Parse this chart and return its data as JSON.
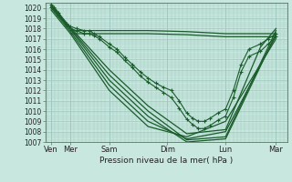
{
  "bg_color": "#c8e8df",
  "grid_color": "#9ec8bf",
  "line_color": "#1a5c2a",
  "x_labels": [
    "Ven",
    "Mer",
    "Sam",
    "Dim",
    "Lun",
    "Mar"
  ],
  "x_positions": [
    0,
    0.5,
    1.5,
    3.0,
    4.5,
    5.8
  ],
  "ylabel": "Pression niveau de la mer( hPa )",
  "ymin": 1007,
  "ymax": 1020.5,
  "yticks": [
    1007,
    1008,
    1009,
    1010,
    1011,
    1012,
    1013,
    1014,
    1015,
    1016,
    1017,
    1018,
    1019,
    1020
  ],
  "xmin": -0.15,
  "xmax": 6.1,
  "forecast_lines": [
    {
      "x": [
        0.0,
        0.08,
        0.2,
        0.4,
        0.5,
        0.65,
        0.85,
        1.0,
        1.1,
        1.25,
        1.5,
        1.7,
        1.9,
        2.1,
        2.3,
        2.5,
        2.7,
        2.9,
        3.1,
        3.3,
        3.5,
        3.65,
        3.8,
        3.95,
        4.1,
        4.3,
        4.5,
        4.7,
        4.9,
        5.1,
        5.4,
        5.6,
        5.8
      ],
      "y": [
        1020.3,
        1020.1,
        1019.5,
        1018.5,
        1018.2,
        1018.0,
        1017.8,
        1017.8,
        1017.5,
        1017.2,
        1016.5,
        1016.0,
        1015.2,
        1014.5,
        1013.8,
        1013.2,
        1012.7,
        1012.3,
        1012.0,
        1011.0,
        1009.8,
        1009.3,
        1009.0,
        1009.0,
        1009.3,
        1009.8,
        1010.2,
        1012.0,
        1014.5,
        1016.0,
        1016.5,
        1017.0,
        1017.5
      ],
      "marker": true,
      "dotted": true
    },
    {
      "x": [
        0.0,
        0.08,
        0.2,
        0.4,
        0.5,
        0.65,
        0.85,
        1.0,
        1.1,
        1.25,
        1.5,
        1.7,
        1.9,
        2.1,
        2.3,
        2.5,
        2.7,
        2.9,
        3.1,
        3.3,
        3.5,
        3.65,
        3.8,
        3.95,
        4.1,
        4.3,
        4.5,
        4.7,
        4.9,
        5.1,
        5.4,
        5.6,
        5.8
      ],
      "y": [
        1020.1,
        1019.9,
        1019.3,
        1018.3,
        1018.0,
        1017.8,
        1017.5,
        1017.5,
        1017.3,
        1017.0,
        1016.2,
        1015.7,
        1014.9,
        1014.2,
        1013.4,
        1012.8,
        1012.3,
        1011.8,
        1011.3,
        1010.3,
        1009.2,
        1008.7,
        1008.3,
        1008.3,
        1008.6,
        1009.1,
        1009.5,
        1011.3,
        1013.8,
        1015.3,
        1015.8,
        1016.5,
        1017.2
      ],
      "marker": true,
      "dotted": true
    },
    {
      "x": [
        0.0,
        0.5,
        1.5,
        2.5,
        3.5,
        4.5,
        5.8
      ],
      "y": [
        1020.2,
        1018.0,
        1013.5,
        1010.0,
        1007.2,
        1007.5,
        1017.8
      ],
      "marker": false,
      "dotted": false
    },
    {
      "x": [
        0.0,
        0.5,
        1.5,
        2.5,
        3.5,
        4.5,
        5.8
      ],
      "y": [
        1020.1,
        1017.9,
        1013.0,
        1009.5,
        1007.0,
        1007.3,
        1017.5
      ],
      "marker": false,
      "dotted": false
    },
    {
      "x": [
        0.0,
        0.5,
        1.5,
        2.5,
        3.5,
        4.5,
        5.8
      ],
      "y": [
        1020.0,
        1017.7,
        1012.5,
        1009.0,
        1007.3,
        1008.0,
        1017.3
      ],
      "marker": false,
      "dotted": false
    },
    {
      "x": [
        0.0,
        0.5,
        1.5,
        2.5,
        3.5,
        4.5,
        5.8
      ],
      "y": [
        1019.8,
        1017.5,
        1012.0,
        1008.5,
        1007.5,
        1009.0,
        1017.0
      ],
      "marker": false,
      "dotted": false
    },
    {
      "x": [
        0.5,
        1.5,
        2.5,
        3.5,
        4.5,
        5.8
      ],
      "y": [
        1017.8,
        1017.8,
        1017.8,
        1017.7,
        1017.5,
        1017.5
      ],
      "marker": false,
      "dotted": false
    },
    {
      "x": [
        0.5,
        1.5,
        2.5,
        3.5,
        4.5,
        5.8
      ],
      "y": [
        1017.5,
        1017.5,
        1017.5,
        1017.4,
        1017.2,
        1017.2
      ],
      "marker": false,
      "dotted": false
    },
    {
      "x": [
        0.0,
        0.5,
        1.5,
        2.5,
        3.5,
        4.5,
        5.4,
        5.8
      ],
      "y": [
        1020.3,
        1018.1,
        1014.0,
        1010.5,
        1007.8,
        1008.2,
        1016.2,
        1018.0
      ],
      "marker": false,
      "dotted": false
    }
  ],
  "vlines": [
    0.0,
    0.5,
    1.5,
    3.0,
    4.5,
    5.8
  ]
}
